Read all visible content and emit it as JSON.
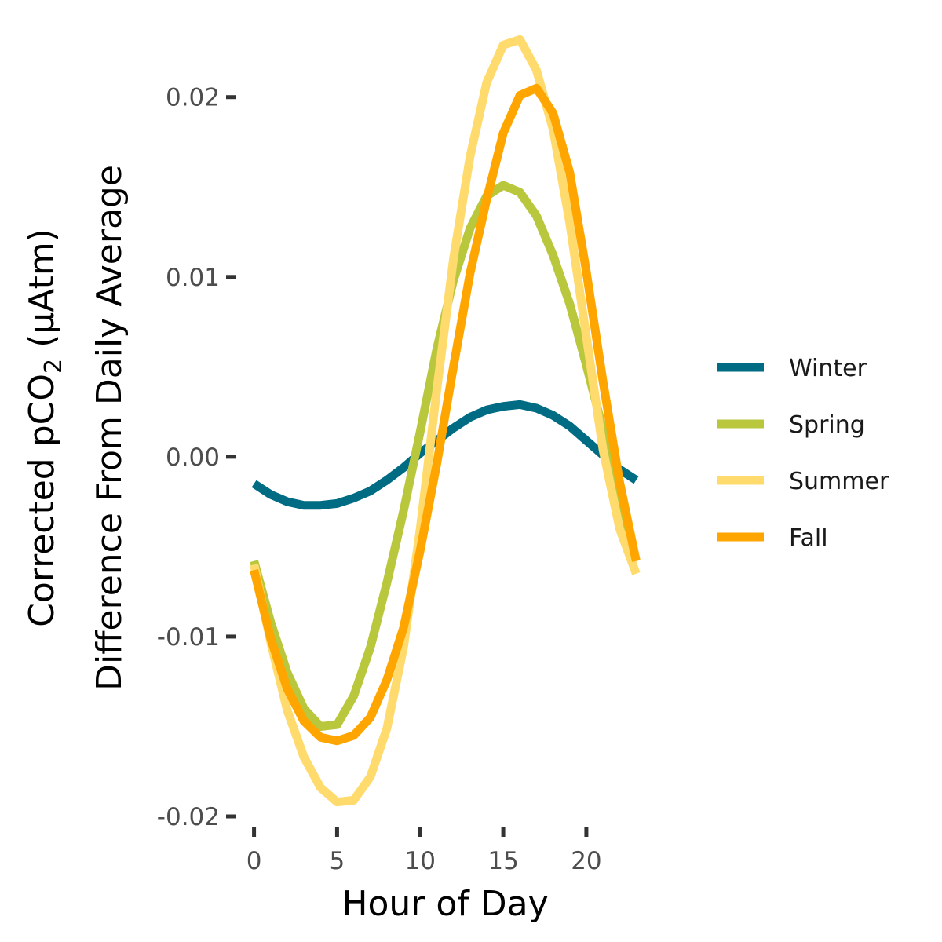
{
  "chart_data": {
    "type": "line",
    "xlabel": "Hour of Day",
    "ylabel_line1_prefix": "Corrected pCO",
    "ylabel_line1_subscript": "2",
    "ylabel_line1_suffix": " (µAtm)",
    "ylabel_line2": "Difference From Daily Average",
    "xlim": [
      -0.5,
      23.5
    ],
    "ylim": [
      -0.02,
      0.023
    ],
    "x_ticks": [
      0,
      5,
      10,
      15,
      20
    ],
    "x_tick_labels": [
      "0",
      "5",
      "10",
      "15",
      "20"
    ],
    "y_ticks": [
      -0.02,
      -0.01,
      0.0,
      0.01,
      0.02
    ],
    "y_tick_labels": [
      "-0.02",
      "-0.01",
      "0.00",
      "0.01",
      "0.02"
    ],
    "grid": false,
    "legend_position": "right",
    "x": [
      0,
      1,
      2,
      3,
      4,
      5,
      6,
      7,
      8,
      9,
      10,
      11,
      12,
      13,
      14,
      15,
      16,
      17,
      18,
      19,
      20,
      21,
      22,
      23
    ],
    "series": [
      {
        "name": "Winter",
        "color": "#006C84",
        "values": [
          -0.0015,
          -0.0021,
          -0.0025,
          -0.0027,
          -0.0027,
          -0.0026,
          -0.0023,
          -0.0019,
          -0.0013,
          -0.0006,
          0.0002,
          0.0009,
          0.0016,
          0.0022,
          0.0026,
          0.0028,
          0.0029,
          0.0027,
          0.0023,
          0.0017,
          0.0009,
          0.0001,
          -0.0007,
          -0.0013
        ]
      },
      {
        "name": "Spring",
        "color": "#B9C73D",
        "values": [
          -0.0058,
          -0.0092,
          -0.012,
          -0.014,
          -0.015,
          -0.0149,
          -0.0133,
          -0.0106,
          -0.007,
          -0.003,
          0.0014,
          0.006,
          0.0098,
          0.0127,
          0.0145,
          0.0151,
          0.0147,
          0.0134,
          0.0112,
          0.0085,
          0.0051,
          0.0015,
          -0.0023,
          -0.0058
        ]
      },
      {
        "name": "Summer",
        "color": "#FFDB6E",
        "values": [
          -0.006,
          -0.0103,
          -0.0141,
          -0.0167,
          -0.0184,
          -0.0192,
          -0.0191,
          -0.0178,
          -0.0151,
          -0.0106,
          -0.004,
          0.0037,
          0.011,
          0.0167,
          0.0208,
          0.0229,
          0.0232,
          0.0215,
          0.0182,
          0.013,
          0.0067,
          0.0004,
          -0.004,
          -0.0065
        ]
      },
      {
        "name": "Fall",
        "color": "#FFA500",
        "values": [
          -0.0063,
          -0.0101,
          -0.0129,
          -0.0147,
          -0.0156,
          -0.0158,
          -0.0155,
          -0.0145,
          -0.0124,
          -0.0095,
          -0.0052,
          -0.0004,
          0.005,
          0.0102,
          0.0143,
          0.018,
          0.0201,
          0.0205,
          0.0191,
          0.0158,
          0.0103,
          0.0042,
          -0.0014,
          -0.0058
        ]
      }
    ]
  }
}
